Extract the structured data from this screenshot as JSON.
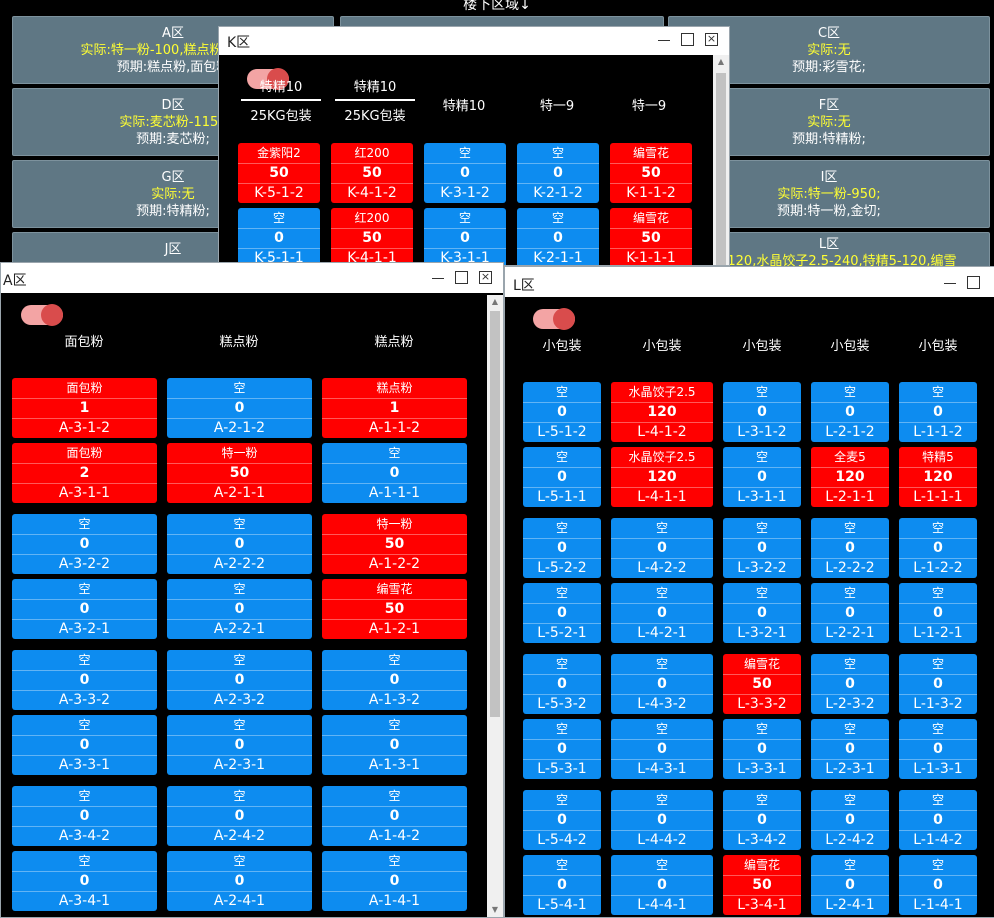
{
  "page_title": "楼下区域↓",
  "zones": [
    {
      "id": "A",
      "name": "A区",
      "actual": "实际:特一粉-100,糕点粉-1,编雪",
      "plan": "预期:糕点粉,面包粉"
    },
    {
      "id": "C",
      "name": "C区",
      "actual": "实际:无",
      "plan": "预期:彩雪花;"
    },
    {
      "id": "D",
      "name": "D区",
      "actual": "实际:麦芯粉-1150",
      "plan": "预期:麦芯粉;"
    },
    {
      "id": "F",
      "name": "F区",
      "actual": "实际:无",
      "plan": "预期:特精粉;"
    },
    {
      "id": "G",
      "name": "G区",
      "actual": "实际:无",
      "plan": "预期:特精粉;"
    },
    {
      "id": "I",
      "name": "I区",
      "actual": "实际:特一粉-950;",
      "plan": "预期:特一粉,金切;"
    },
    {
      "id": "J",
      "name": "J区",
      "actual": "",
      "plan": ""
    },
    {
      "id": "L",
      "name": "L区",
      "actual": "麦5-120,水晶饺子2.5-240,特精5-120,编雪",
      "plan": ""
    }
  ],
  "windows": {
    "K": {
      "title": "K区",
      "headers": [
        {
          "a": "特精10",
          "b": "25KG包装"
        },
        {
          "a": "特精10",
          "b": "25KG包装"
        },
        {
          "a": "特精10",
          "b": ""
        },
        {
          "a": "特一9",
          "b": ""
        },
        {
          "a": "特一9",
          "b": ""
        }
      ],
      "rows": [
        [
          {
            "n": "金紫阳2",
            "q": "50",
            "c": "K-5-1-2",
            "s": "full"
          },
          {
            "n": "红200",
            "q": "50",
            "c": "K-4-1-2",
            "s": "full"
          },
          {
            "n": "空",
            "q": "0",
            "c": "K-3-1-2",
            "s": "empty"
          },
          {
            "n": "空",
            "q": "0",
            "c": "K-2-1-2",
            "s": "empty"
          },
          {
            "n": "编雪花",
            "q": "50",
            "c": "K-1-1-2",
            "s": "full"
          }
        ],
        [
          {
            "n": "空",
            "q": "0",
            "c": "K-5-1-1",
            "s": "empty"
          },
          {
            "n": "红200",
            "q": "50",
            "c": "K-4-1-1",
            "s": "full"
          },
          {
            "n": "空",
            "q": "0",
            "c": "K-3-1-1",
            "s": "empty"
          },
          {
            "n": "空",
            "q": "0",
            "c": "K-2-1-1",
            "s": "empty"
          },
          {
            "n": "编雪花",
            "q": "50",
            "c": "K-1-1-1",
            "s": "full"
          }
        ]
      ]
    },
    "A": {
      "title": "A区",
      "headers": [
        "面包粉",
        "糕点粉",
        "糕点粉"
      ],
      "rows": [
        [
          {
            "n": "面包粉",
            "q": "1",
            "c": "A-3-1-2",
            "s": "full"
          },
          {
            "n": "空",
            "q": "0",
            "c": "A-2-1-2",
            "s": "empty"
          },
          {
            "n": "糕点粉",
            "q": "1",
            "c": "A-1-1-2",
            "s": "full"
          }
        ],
        [
          {
            "n": "面包粉",
            "q": "2",
            "c": "A-3-1-1",
            "s": "full"
          },
          {
            "n": "特一粉",
            "q": "50",
            "c": "A-2-1-1",
            "s": "full"
          },
          {
            "n": "空",
            "q": "0",
            "c": "A-1-1-1",
            "s": "empty"
          }
        ],
        [
          {
            "n": "空",
            "q": "0",
            "c": "A-3-2-2",
            "s": "empty"
          },
          {
            "n": "空",
            "q": "0",
            "c": "A-2-2-2",
            "s": "empty"
          },
          {
            "n": "特一粉",
            "q": "50",
            "c": "A-1-2-2",
            "s": "full"
          }
        ],
        [
          {
            "n": "空",
            "q": "0",
            "c": "A-3-2-1",
            "s": "empty"
          },
          {
            "n": "空",
            "q": "0",
            "c": "A-2-2-1",
            "s": "empty"
          },
          {
            "n": "编雪花",
            "q": "50",
            "c": "A-1-2-1",
            "s": "full"
          }
        ],
        [
          {
            "n": "空",
            "q": "0",
            "c": "A-3-3-2",
            "s": "empty"
          },
          {
            "n": "空",
            "q": "0",
            "c": "A-2-3-2",
            "s": "empty"
          },
          {
            "n": "空",
            "q": "0",
            "c": "A-1-3-2",
            "s": "empty"
          }
        ],
        [
          {
            "n": "空",
            "q": "0",
            "c": "A-3-3-1",
            "s": "empty"
          },
          {
            "n": "空",
            "q": "0",
            "c": "A-2-3-1",
            "s": "empty"
          },
          {
            "n": "空",
            "q": "0",
            "c": "A-1-3-1",
            "s": "empty"
          }
        ],
        [
          {
            "n": "空",
            "q": "0",
            "c": "A-3-4-2",
            "s": "empty"
          },
          {
            "n": "空",
            "q": "0",
            "c": "A-2-4-2",
            "s": "empty"
          },
          {
            "n": "空",
            "q": "0",
            "c": "A-1-4-2",
            "s": "empty"
          }
        ],
        [
          {
            "n": "空",
            "q": "0",
            "c": "A-3-4-1",
            "s": "empty"
          },
          {
            "n": "空",
            "q": "0",
            "c": "A-2-4-1",
            "s": "empty"
          },
          {
            "n": "空",
            "q": "0",
            "c": "A-1-4-1",
            "s": "empty"
          }
        ]
      ]
    },
    "L": {
      "title": "L区",
      "headers": [
        "小包装",
        "小包装",
        "小包装",
        "小包装",
        "小包装"
      ],
      "rows": [
        [
          {
            "n": "空",
            "q": "0",
            "c": "L-5-1-2",
            "s": "empty"
          },
          {
            "n": "水晶饺子2.5",
            "q": "120",
            "c": "L-4-1-2",
            "s": "full"
          },
          {
            "n": "空",
            "q": "0",
            "c": "L-3-1-2",
            "s": "empty"
          },
          {
            "n": "空",
            "q": "0",
            "c": "L-2-1-2",
            "s": "empty"
          },
          {
            "n": "空",
            "q": "0",
            "c": "L-1-1-2",
            "s": "empty"
          }
        ],
        [
          {
            "n": "空",
            "q": "0",
            "c": "L-5-1-1",
            "s": "empty"
          },
          {
            "n": "水晶饺子2.5",
            "q": "120",
            "c": "L-4-1-1",
            "s": "full"
          },
          {
            "n": "空",
            "q": "0",
            "c": "L-3-1-1",
            "s": "empty"
          },
          {
            "n": "全麦5",
            "q": "120",
            "c": "L-2-1-1",
            "s": "full"
          },
          {
            "n": "特精5",
            "q": "120",
            "c": "L-1-1-1",
            "s": "full"
          }
        ],
        [
          {
            "n": "空",
            "q": "0",
            "c": "L-5-2-2",
            "s": "empty"
          },
          {
            "n": "空",
            "q": "0",
            "c": "L-4-2-2",
            "s": "empty"
          },
          {
            "n": "空",
            "q": "0",
            "c": "L-3-2-2",
            "s": "empty"
          },
          {
            "n": "空",
            "q": "0",
            "c": "L-2-2-2",
            "s": "empty"
          },
          {
            "n": "空",
            "q": "0",
            "c": "L-1-2-2",
            "s": "empty"
          }
        ],
        [
          {
            "n": "空",
            "q": "0",
            "c": "L-5-2-1",
            "s": "empty"
          },
          {
            "n": "空",
            "q": "0",
            "c": "L-4-2-1",
            "s": "empty"
          },
          {
            "n": "空",
            "q": "0",
            "c": "L-3-2-1",
            "s": "empty"
          },
          {
            "n": "空",
            "q": "0",
            "c": "L-2-2-1",
            "s": "empty"
          },
          {
            "n": "空",
            "q": "0",
            "c": "L-1-2-1",
            "s": "empty"
          }
        ],
        [
          {
            "n": "空",
            "q": "0",
            "c": "L-5-3-2",
            "s": "empty"
          },
          {
            "n": "空",
            "q": "0",
            "c": "L-4-3-2",
            "s": "empty"
          },
          {
            "n": "编雪花",
            "q": "50",
            "c": "L-3-3-2",
            "s": "full"
          },
          {
            "n": "空",
            "q": "0",
            "c": "L-2-3-2",
            "s": "empty"
          },
          {
            "n": "空",
            "q": "0",
            "c": "L-1-3-2",
            "s": "empty"
          }
        ],
        [
          {
            "n": "空",
            "q": "0",
            "c": "L-5-3-1",
            "s": "empty"
          },
          {
            "n": "空",
            "q": "0",
            "c": "L-4-3-1",
            "s": "empty"
          },
          {
            "n": "空",
            "q": "0",
            "c": "L-3-3-1",
            "s": "empty"
          },
          {
            "n": "空",
            "q": "0",
            "c": "L-2-3-1",
            "s": "empty"
          },
          {
            "n": "空",
            "q": "0",
            "c": "L-1-3-1",
            "s": "empty"
          }
        ],
        [
          {
            "n": "空",
            "q": "0",
            "c": "L-5-4-2",
            "s": "empty"
          },
          {
            "n": "空",
            "q": "0",
            "c": "L-4-4-2",
            "s": "empty"
          },
          {
            "n": "空",
            "q": "0",
            "c": "L-3-4-2",
            "s": "empty"
          },
          {
            "n": "空",
            "q": "0",
            "c": "L-2-4-2",
            "s": "empty"
          },
          {
            "n": "空",
            "q": "0",
            "c": "L-1-4-2",
            "s": "empty"
          }
        ],
        [
          {
            "n": "空",
            "q": "0",
            "c": "L-5-4-1",
            "s": "empty"
          },
          {
            "n": "空",
            "q": "0",
            "c": "L-4-4-1",
            "s": "empty"
          },
          {
            "n": "编雪花",
            "q": "50",
            "c": "L-3-4-1",
            "s": "full"
          },
          {
            "n": "空",
            "q": "0",
            "c": "L-2-4-1",
            "s": "empty"
          },
          {
            "n": "空",
            "q": "0",
            "c": "L-1-4-1",
            "s": "empty"
          }
        ]
      ]
    }
  }
}
